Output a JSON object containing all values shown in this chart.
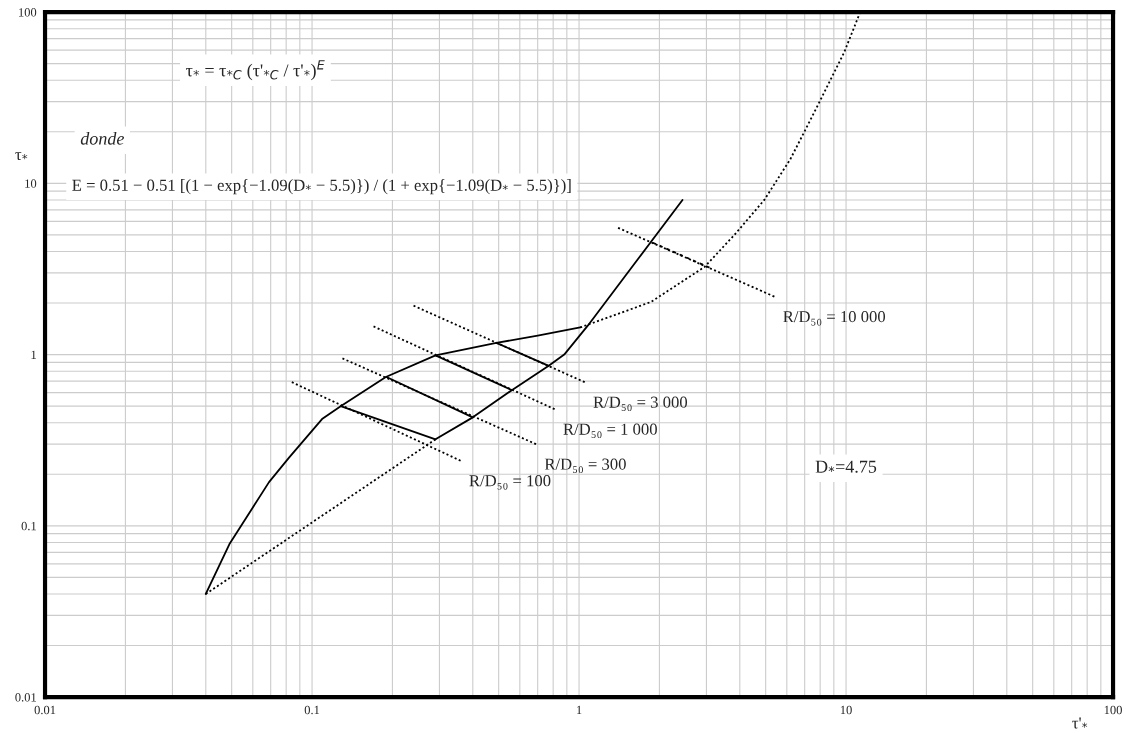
{
  "chart_data": {
    "type": "line",
    "xlabel": "τ'$_{*}$",
    "ylabel": "τ$_{*}$",
    "log": "xy",
    "xlim": [
      0.01,
      100
    ],
    "ylim": [
      0.01,
      100
    ],
    "xticks": [
      0.01,
      0.1,
      1,
      10,
      100
    ],
    "yticks": [
      0.01,
      0.1,
      1,
      10,
      100
    ],
    "grid": true,
    "legend": false,
    "series": [
      {
        "color": "#000000",
        "line_style": "solid",
        "x": [
          0.04,
          0.049,
          0.069,
          0.082,
          0.109,
          0.128,
          0.189,
          0.29,
          0.49,
          0.7,
          1.01
        ],
        "values": [
          0.04,
          0.078,
          0.18,
          0.25,
          0.42,
          0.5,
          0.74,
          0.99,
          1.17,
          1.29,
          1.44
        ]
      },
      {
        "color": "#000000",
        "line_style": "solid",
        "x": [
          0.29,
          0.4,
          0.56,
          0.77,
          0.88,
          1.08,
          1.66,
          2.44
        ],
        "values": [
          0.32,
          0.43,
          0.62,
          0.86,
          1.0,
          1.48,
          3.6,
          8.0
        ]
      },
      {
        "color": "#000000",
        "line_style": "dotted",
        "x": [
          0.04,
          0.29
        ],
        "values": [
          0.04,
          0.32
        ]
      },
      {
        "color": "#000000",
        "line_style": "dotted",
        "x": [
          1.01,
          1.86,
          2.95,
          3.82,
          4.94,
          6.18,
          7.79,
          9.83,
          11.3
        ],
        "values": [
          1.44,
          2.03,
          3.25,
          5.0,
          8.0,
          13.8,
          28,
          58,
          100
        ]
      },
      {
        "color": "#000000",
        "line_style": "dotted",
        "x": [
          0.084,
          0.36
        ],
        "values": [
          0.69,
          0.24
        ]
      },
      {
        "color": "#000000",
        "line_style": "solid",
        "x": [
          0.128,
          0.29
        ],
        "values": [
          0.5,
          0.32
        ]
      },
      {
        "color": "#000000",
        "line_style": "dotted",
        "x": [
          0.13,
          0.69
        ],
        "values": [
          0.95,
          0.3
        ]
      },
      {
        "color": "#000000",
        "line_style": "solid",
        "x": [
          0.19,
          0.4
        ],
        "values": [
          0.74,
          0.43
        ]
      },
      {
        "color": "#000000",
        "line_style": "dotted",
        "x": [
          0.17,
          0.81
        ],
        "values": [
          1.46,
          0.48
        ]
      },
      {
        "color": "#000000",
        "line_style": "solid",
        "x": [
          0.29,
          0.56
        ],
        "values": [
          0.99,
          0.62
        ]
      },
      {
        "color": "#000000",
        "line_style": "dotted",
        "x": [
          0.24,
          1.05
        ],
        "values": [
          1.93,
          0.69
        ]
      },
      {
        "color": "#000000",
        "line_style": "solid",
        "x": [
          0.49,
          0.77
        ],
        "values": [
          1.17,
          0.86
        ]
      },
      {
        "color": "#000000",
        "line_style": "dotted",
        "x": [
          1.4,
          5.39
        ],
        "values": [
          5.5,
          2.18
        ]
      },
      {
        "color": "#000000",
        "line_style": "dashed",
        "x": [
          1.89,
          3.08
        ],
        "values": [
          4.5,
          3.22
        ]
      }
    ],
    "annotations": [
      "τ$_{*}$ = τ$_{*C}$ (τ'$_{*C}$ / τ'$_{*}$)$^{E}$",
      "donde",
      "E = 0.51 − 0.51 [(1 − exp{−1.09(D$_{*}$ − 5.5)}) / (1 + exp{−1.09(D$_{*}$ − 5.5)})]",
      "D$_{*}$=4.75",
      {
        "text": "R/D₅₀ = 100",
        "x": 0.36,
        "y": 0.24
      },
      {
        "text": "R/D₅₀ = 300",
        "x": 0.69,
        "y": 0.3
      },
      {
        "text": "R/D₅₀ = 1 000",
        "x": 0.81,
        "y": 0.48
      },
      {
        "text": "R/D₅₀ = 3 000",
        "x": 1.05,
        "y": 0.69
      },
      {
        "text": "R/D₅₀ = 10 000",
        "x": 5.39,
        "y": 2.18
      }
    ]
  }
}
